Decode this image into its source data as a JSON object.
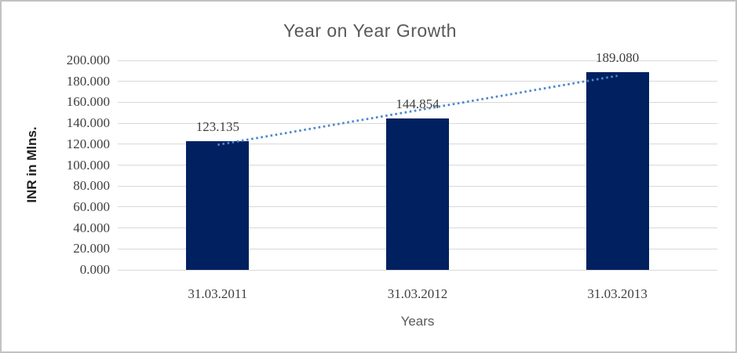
{
  "chart_data": {
    "type": "bar",
    "title": "Year on Year Growth",
    "xlabel": "Years",
    "ylabel": "INR in Mlns.",
    "categories": [
      "31.03.2011",
      "31.03.2012",
      "31.03.2013"
    ],
    "values": [
      123.135,
      144.854,
      189.08
    ],
    "value_labels": [
      "123.135",
      "144.854",
      "189.080"
    ],
    "ylim": [
      0,
      200
    ],
    "ytick_step": 20,
    "ytick_labels": [
      "0.000",
      "20.000",
      "40.000",
      "60.000",
      "80.000",
      "100.000",
      "120.000",
      "140.000",
      "160.000",
      "180.000",
      "200.000"
    ],
    "grid": true,
    "legend": "none",
    "trendline": {
      "type": "linear",
      "style": "dotted"
    },
    "colors": {
      "bar": "#002060",
      "trendline": "#4e87cf",
      "gridline": "#d9d9d9",
      "title_text": "#595959",
      "axis_text": "#404040"
    }
  }
}
